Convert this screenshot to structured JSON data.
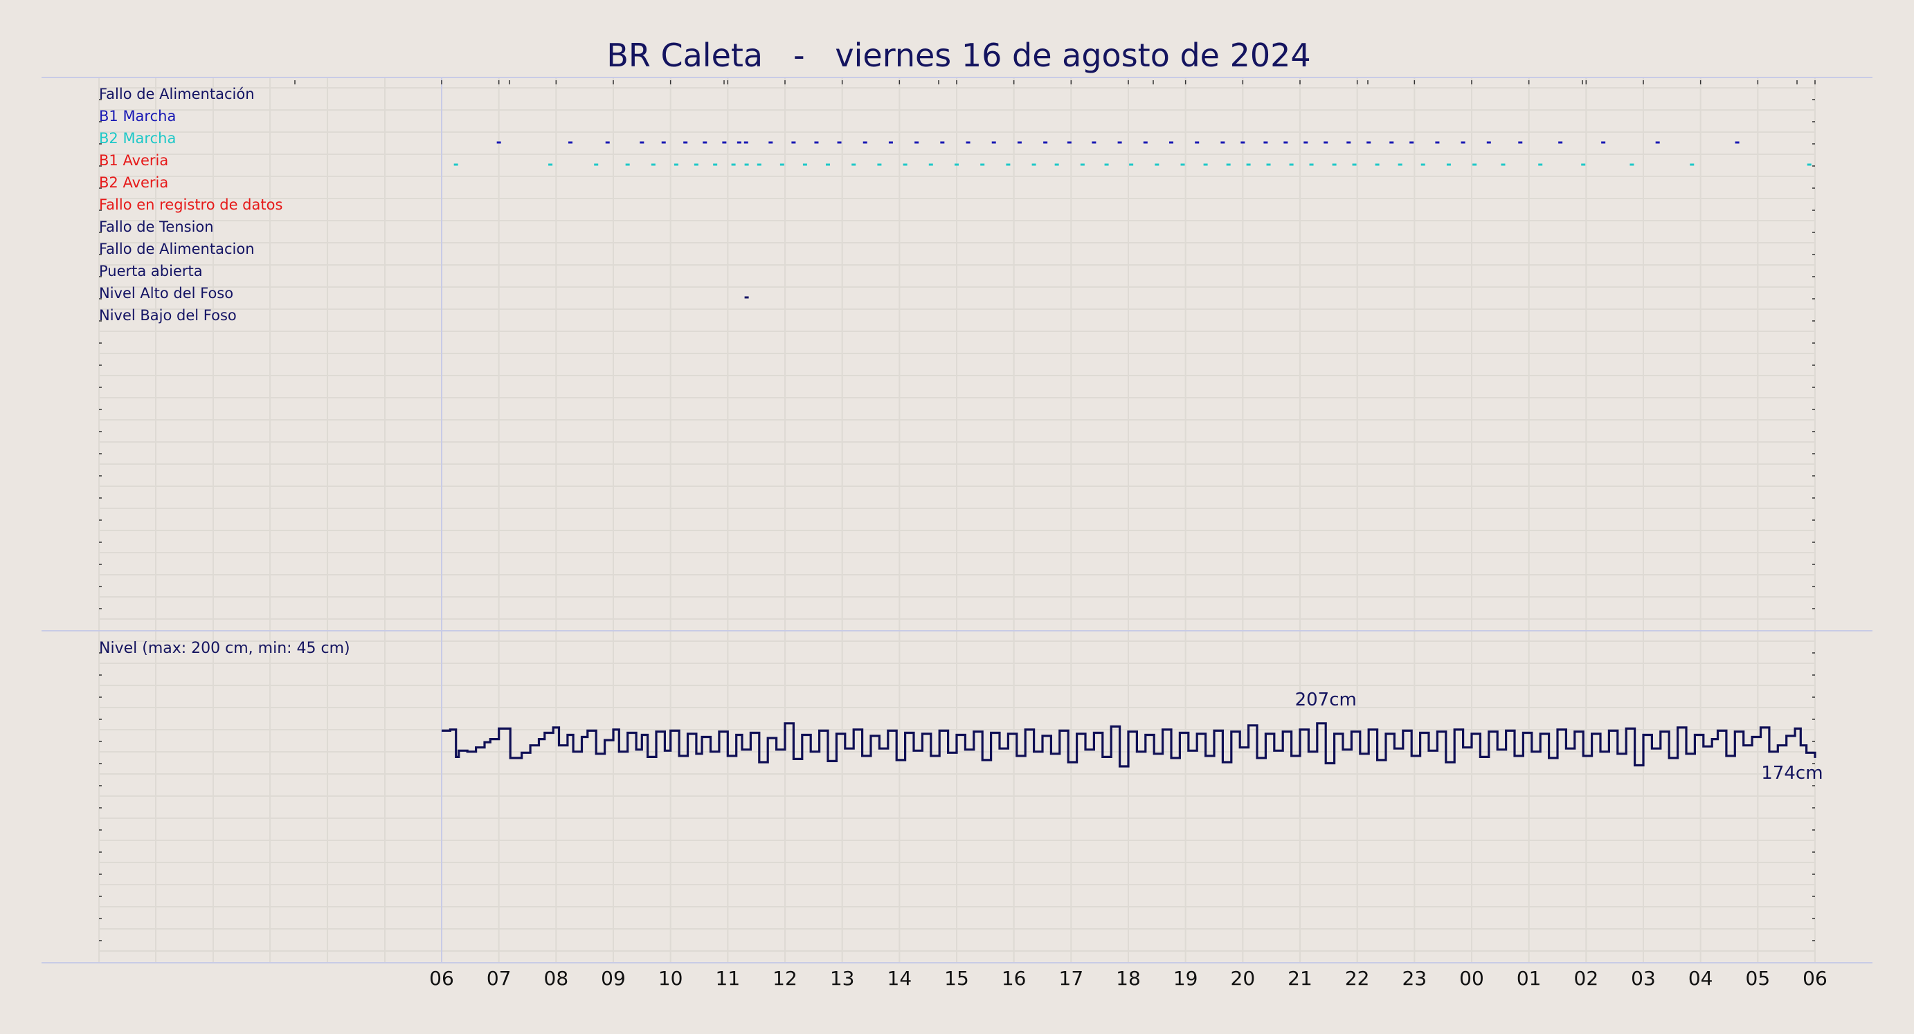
{
  "title": "BR Caleta   -   viernes 16 de agosto de 2024",
  "colors": {
    "background": "#ebe6e1",
    "grid": "#dedad4",
    "title": "#14145f",
    "divider": "#c8cbe6",
    "level_line": "#0f0f55",
    "b1": "#1919b4",
    "b2": "#1ec8c8",
    "alarm": "#e61919",
    "dark": "#141464",
    "event_black": "#000000"
  },
  "chart_data": [
    {
      "type": "event-timeline",
      "x_axis": {
        "unit": "hour",
        "start_label": "06",
        "end_label": "06",
        "tick_labels": [
          "06",
          "07",
          "08",
          "09",
          "10",
          "11",
          "12",
          "13",
          "14",
          "15",
          "16",
          "17",
          "18",
          "19",
          "20",
          "21",
          "22",
          "23",
          "00",
          "01",
          "02",
          "03",
          "04",
          "05",
          "06"
        ],
        "range_hours": [
          0,
          24
        ]
      },
      "signals": [
        {
          "label": "Fallo de Alimentación",
          "color": "#141464",
          "events": []
        },
        {
          "label": "B1 Marcha",
          "color": "#1919b4",
          "events": [
            1.0,
            2.25,
            2.9,
            3.5,
            3.88,
            4.26,
            4.6,
            4.94,
            5.2,
            5.32,
            5.75,
            6.15,
            6.55,
            6.95,
            7.4,
            7.85,
            8.3,
            8.75,
            9.2,
            9.65,
            10.1,
            10.55,
            10.97,
            11.4,
            11.85,
            12.3,
            12.75,
            13.2,
            13.65,
            14.0,
            14.4,
            14.75,
            15.1,
            15.45,
            15.85,
            16.2,
            16.6,
            16.95,
            17.4,
            17.85,
            18.3,
            18.85,
            19.55,
            20.3,
            21.25,
            22.64
          ]
        },
        {
          "label": "B2 Marcha",
          "color": "#1ec8c8",
          "events": [
            0.25,
            1.9,
            2.7,
            3.25,
            3.7,
            4.1,
            4.45,
            4.78,
            5.1,
            5.33,
            5.55,
            5.95,
            6.35,
            6.75,
            7.2,
            7.65,
            8.1,
            8.55,
            9.0,
            9.45,
            9.9,
            10.35,
            10.75,
            11.2,
            11.62,
            12.05,
            12.5,
            12.95,
            13.35,
            13.75,
            14.1,
            14.45,
            14.85,
            15.2,
            15.6,
            15.95,
            16.35,
            16.75,
            17.15,
            17.6,
            18.05,
            18.55,
            19.2,
            19.95,
            20.8,
            21.85,
            23.9
          ]
        },
        {
          "label": "B1 Averia",
          "color": "#e61919",
          "events": []
        },
        {
          "label": "B2 Averia",
          "color": "#e61919",
          "events": []
        },
        {
          "label": "Fallo en registro de datos",
          "color": "#e61919",
          "events": []
        },
        {
          "label": "Fallo de Tension",
          "color": "#141464",
          "events": []
        },
        {
          "label": "Fallo de Alimentacion",
          "color": "#141464",
          "events": []
        },
        {
          "label": "Puerta abierta",
          "color": "#141464",
          "events": [
            5.33
          ]
        },
        {
          "label": "Nivel Alto del Foso",
          "color": "#141464",
          "events": []
        },
        {
          "label": "Nivel Bajo del Foso",
          "color": "#141464",
          "events": []
        }
      ]
    },
    {
      "type": "line",
      "label": "Nivel (max: 200 cm, min: 45 cm)",
      "x_unit": "hour",
      "y_unit": "cm",
      "y_range": [
        0,
        280
      ],
      "x": [
        0.0,
        0.15,
        0.25,
        0.3,
        0.45,
        0.6,
        0.75,
        0.85,
        1.0,
        1.2,
        1.4,
        1.55,
        1.7,
        1.8,
        1.95,
        2.05,
        2.2,
        2.3,
        2.45,
        2.55,
        2.7,
        2.85,
        3.0,
        3.1,
        3.25,
        3.4,
        3.5,
        3.6,
        3.75,
        3.9,
        4.0,
        4.15,
        4.3,
        4.45,
        4.55,
        4.7,
        4.85,
        5.0,
        5.15,
        5.25,
        5.4,
        5.55,
        5.7,
        5.85,
        6.0,
        6.15,
        6.3,
        6.45,
        6.6,
        6.75,
        6.9,
        7.05,
        7.2,
        7.35,
        7.5,
        7.65,
        7.8,
        7.95,
        8.1,
        8.25,
        8.4,
        8.55,
        8.7,
        8.85,
        9.0,
        9.15,
        9.3,
        9.45,
        9.6,
        9.75,
        9.9,
        10.05,
        10.2,
        10.35,
        10.5,
        10.65,
        10.8,
        10.95,
        11.1,
        11.25,
        11.4,
        11.55,
        11.7,
        11.85,
        12.0,
        12.15,
        12.3,
        12.45,
        12.6,
        12.75,
        12.9,
        13.05,
        13.2,
        13.35,
        13.5,
        13.65,
        13.8,
        13.95,
        14.1,
        14.25,
        14.4,
        14.55,
        14.7,
        14.85,
        15.0,
        15.15,
        15.3,
        15.45,
        15.6,
        15.75,
        15.9,
        16.05,
        16.2,
        16.35,
        16.5,
        16.65,
        16.8,
        16.95,
        17.1,
        17.25,
        17.4,
        17.55,
        17.7,
        17.85,
        18.0,
        18.15,
        18.3,
        18.45,
        18.6,
        18.75,
        18.9,
        19.05,
        19.2,
        19.35,
        19.5,
        19.65,
        19.8,
        19.95,
        20.1,
        20.25,
        20.4,
        20.55,
        20.7,
        20.85,
        21.0,
        21.15,
        21.3,
        21.45,
        21.6,
        21.75,
        21.9,
        22.05,
        22.2,
        22.3,
        22.45,
        22.6,
        22.75,
        22.9,
        23.05,
        23.2,
        23.35,
        23.5,
        23.65,
        23.75,
        23.85,
        24.0
      ],
      "y": [
        200,
        201,
        175,
        181,
        180,
        184,
        189,
        192,
        202,
        174,
        179,
        186,
        192,
        198,
        203,
        186,
        196,
        180,
        194,
        200,
        178,
        191,
        201,
        180,
        198,
        182,
        196,
        175,
        199,
        181,
        200,
        176,
        197,
        178,
        194,
        180,
        199,
        176,
        196,
        182,
        198,
        170,
        193,
        182,
        207,
        173,
        196,
        180,
        200,
        171,
        197,
        183,
        201,
        176,
        195,
        183,
        200,
        172,
        198,
        181,
        197,
        176,
        200,
        179,
        196,
        182,
        199,
        172,
        198,
        183,
        197,
        176,
        201,
        180,
        195,
        178,
        200,
        170,
        197,
        182,
        198,
        175,
        204,
        166,
        199,
        180,
        196,
        178,
        201,
        174,
        198,
        181,
        197,
        176,
        200,
        170,
        199,
        184,
        205,
        174,
        197,
        181,
        199,
        176,
        201,
        180,
        207,
        169,
        197,
        182,
        199,
        178,
        201,
        172,
        197,
        183,
        200,
        176,
        198,
        181,
        199,
        170,
        201,
        184,
        197,
        175,
        199,
        182,
        200,
        176,
        198,
        180,
        197,
        174,
        201,
        183,
        199,
        176,
        197,
        180,
        200,
        178,
        202,
        167,
        196,
        183,
        199,
        174,
        203,
        178,
        196,
        185,
        192,
        200,
        176,
        199,
        186,
        194,
        203,
        180,
        186,
        195,
        202,
        186,
        179,
        174
      ],
      "annotations": [
        {
          "text": "207cm",
          "x": 15.45,
          "y": 207
        },
        {
          "text": "174cm",
          "x": 23.6,
          "y": 174
        }
      ]
    }
  ]
}
